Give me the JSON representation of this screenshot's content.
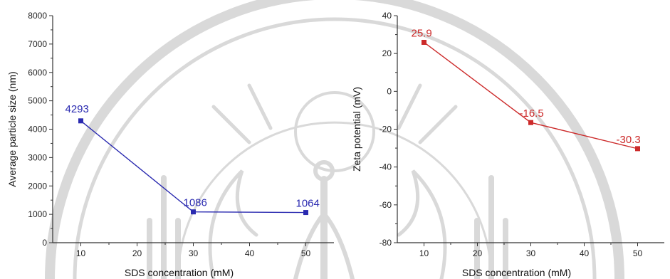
{
  "chart_data": [
    {
      "type": "line",
      "x": [
        10,
        30,
        50
      ],
      "series": [
        {
          "values": [
            4293,
            1086,
            1064
          ],
          "labels": [
            "4293",
            "1086",
            "1064"
          ],
          "color": "#2a2ab0"
        }
      ],
      "title": "",
      "xlabel": "SDS concentration (mM)",
      "ylabel": "Average particle size (nm)",
      "xlim": [
        5,
        55
      ],
      "ylim": [
        0,
        8000
      ],
      "xticks": [
        10,
        20,
        30,
        40,
        50
      ],
      "yticks": [
        0,
        1000,
        2000,
        3000,
        4000,
        5000,
        6000,
        7000,
        8000
      ],
      "grid": false,
      "marker": "square"
    },
    {
      "type": "line",
      "x": [
        10,
        30,
        50
      ],
      "series": [
        {
          "values": [
            25.9,
            -16.5,
            -30.3
          ],
          "labels": [
            "25.9",
            "-16.5",
            "-30.3"
          ],
          "color": "#cc2a2a"
        }
      ],
      "title": "",
      "xlabel": "SDS concentration (mM)",
      "ylabel": "Zeta potential (mV)",
      "xlim": [
        5,
        55
      ],
      "ylim": [
        -80,
        40
      ],
      "xticks": [
        10,
        20,
        30,
        40,
        50
      ],
      "yticks": [
        -80,
        -60,
        -40,
        -20,
        0,
        20,
        40
      ],
      "grid": false,
      "marker": "square"
    }
  ],
  "watermark": {
    "description": "faint university seal",
    "color": "#d9d9d9"
  }
}
